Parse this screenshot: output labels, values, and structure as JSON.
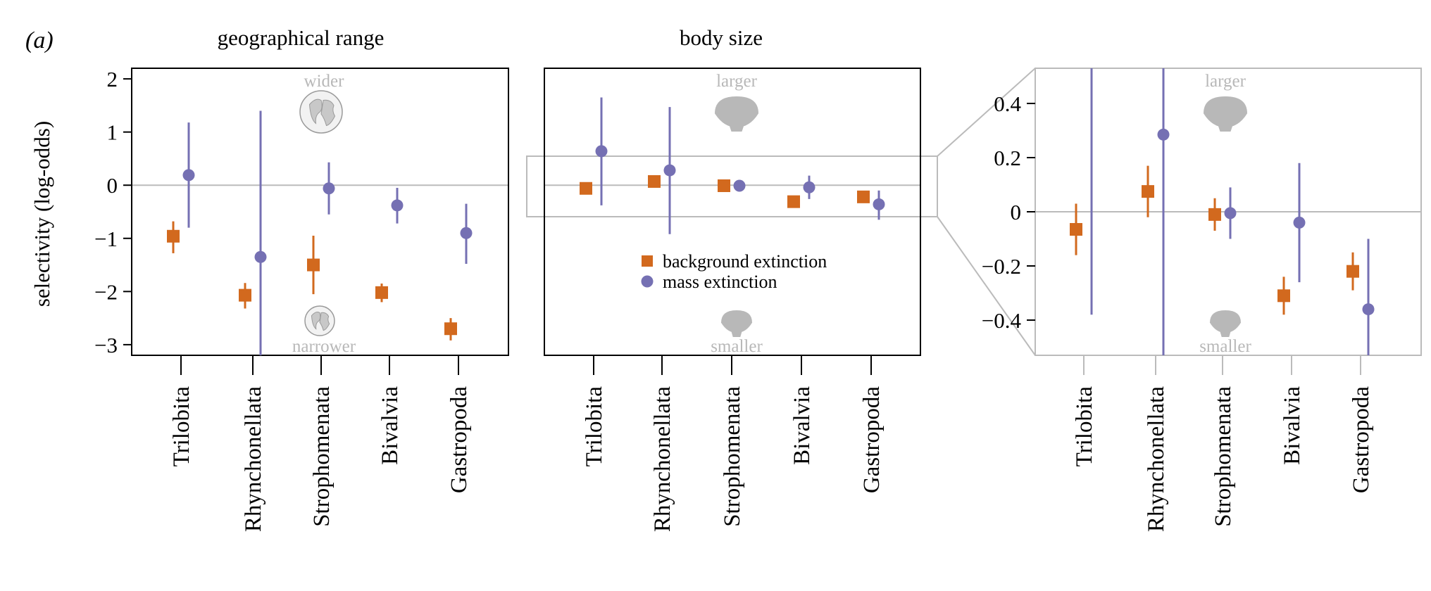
{
  "figure": {
    "panel_label": "(a)",
    "y_axis_label": "selectivity (log-odds)"
  },
  "legend": {
    "background_label": "background extinction",
    "mass_label": "mass extinction"
  },
  "colors": {
    "background": "#D2691E",
    "mass": "#7570B3",
    "zoom_frame": "#BBBBBB",
    "icon_gray": "#B8B8B8",
    "zero_line": "#BBBBBB"
  },
  "chart_data": [
    {
      "id": "geo",
      "type": "scatter",
      "title": "geographical range",
      "top_annotation": "wider",
      "bottom_annotation": "narrower",
      "icon": "globe-icon",
      "categories": [
        "Trilobita",
        "Rhynchonellata",
        "Strophomenata",
        "Bivalvia",
        "Gastropoda"
      ],
      "ylim": [
        -3.2,
        2.2
      ],
      "yticks": [
        -3,
        -2,
        -1,
        0,
        1,
        2
      ],
      "series": [
        {
          "key": "background",
          "marker": "square",
          "values": [
            -0.96,
            -2.07,
            -1.5,
            -2.02,
            -2.7
          ],
          "lower": [
            -1.28,
            -2.32,
            -2.05,
            -2.2,
            -2.92
          ],
          "upper": [
            -0.68,
            -1.84,
            -0.95,
            -1.85,
            -2.5
          ]
        },
        {
          "key": "mass",
          "marker": "circle",
          "values": [
            0.19,
            -1.35,
            -0.06,
            -0.38,
            -0.9
          ],
          "lower": [
            -0.8,
            -3.2,
            -0.55,
            -0.72,
            -1.48
          ],
          "upper": [
            1.18,
            1.4,
            0.43,
            -0.05,
            -0.35
          ]
        }
      ]
    },
    {
      "id": "body",
      "type": "scatter",
      "title": "body size",
      "top_annotation": "larger",
      "bottom_annotation": "smaller",
      "icon": "shell-icon",
      "categories": [
        "Trilobita",
        "Rhynchonellata",
        "Strophomenata",
        "Bivalvia",
        "Gastropoda"
      ],
      "ylim": [
        -3.2,
        2.2
      ],
      "series": [
        {
          "key": "background",
          "marker": "square",
          "values": [
            -0.06,
            0.07,
            -0.01,
            -0.31,
            -0.22
          ],
          "lower": [
            -0.16,
            -0.02,
            -0.07,
            -0.38,
            -0.29
          ],
          "upper": [
            0.03,
            0.17,
            0.05,
            -0.24,
            -0.15
          ]
        },
        {
          "key": "mass",
          "marker": "circle",
          "values": [
            0.64,
            0.28,
            -0.01,
            -0.04,
            -0.36
          ],
          "lower": [
            -0.38,
            -0.92,
            -0.1,
            -0.26,
            -0.65
          ],
          "upper": [
            1.65,
            1.47,
            0.09,
            0.18,
            -0.1
          ]
        }
      ]
    },
    {
      "id": "zoom",
      "type": "scatter",
      "top_annotation": "larger",
      "bottom_annotation": "smaller",
      "icon": "shell-icon",
      "categories": [
        "Trilobita",
        "Rhynchonellata",
        "Strophomenata",
        "Bivalvia",
        "Gastropoda"
      ],
      "ylim": [
        -0.53,
        0.53
      ],
      "yticks": [
        -0.4,
        -0.2,
        0,
        0.2,
        0.4
      ],
      "series": [
        {
          "key": "background",
          "marker": "square",
          "values": [
            -0.065,
            0.075,
            -0.01,
            -0.31,
            -0.22
          ],
          "lower": [
            -0.16,
            -0.02,
            -0.07,
            -0.38,
            -0.29
          ],
          "upper": [
            0.03,
            0.17,
            0.05,
            -0.24,
            -0.15
          ]
        },
        {
          "key": "mass",
          "marker": "circle",
          "values": [
            null,
            0.285,
            -0.005,
            -0.04,
            -0.36
          ],
          "lower": [
            -0.38,
            -0.53,
            -0.1,
            -0.26,
            -0.53
          ],
          "upper": [
            0.53,
            0.53,
            0.09,
            0.18,
            -0.1
          ]
        }
      ]
    }
  ]
}
